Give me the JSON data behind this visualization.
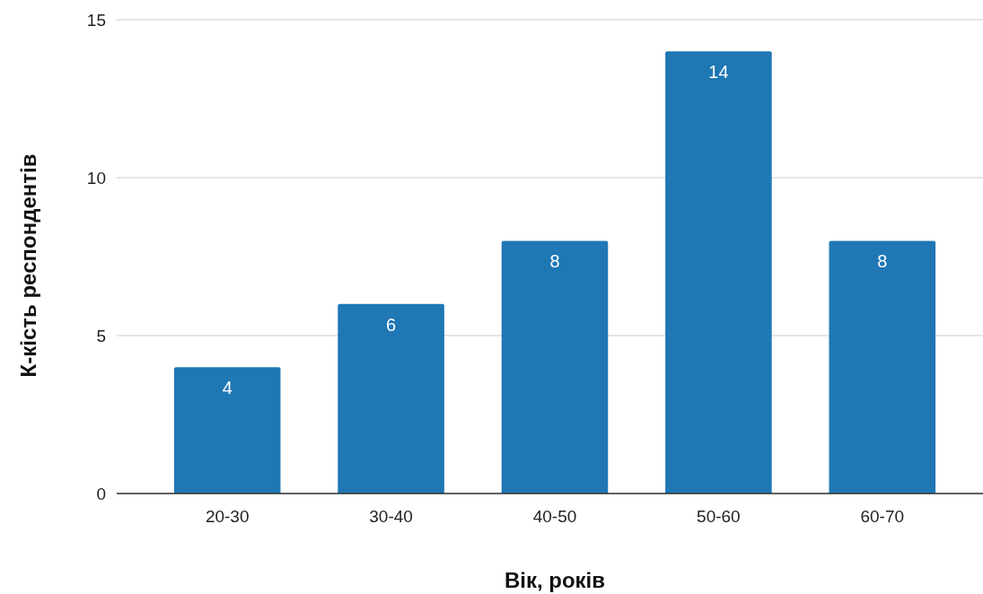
{
  "chart_data": {
    "type": "bar",
    "xlabel": "Вік, років",
    "ylabel": "К-кість респондентів",
    "categories": [
      "20-30",
      "30-40",
      "40-50",
      "50-60",
      "60-70"
    ],
    "values": [
      4,
      6,
      8,
      14,
      8
    ],
    "color": "#1f77b4",
    "ylim": [
      0,
      15
    ],
    "yticks": [
      0,
      5,
      10,
      15
    ],
    "grid": "y",
    "data_labels": true
  }
}
